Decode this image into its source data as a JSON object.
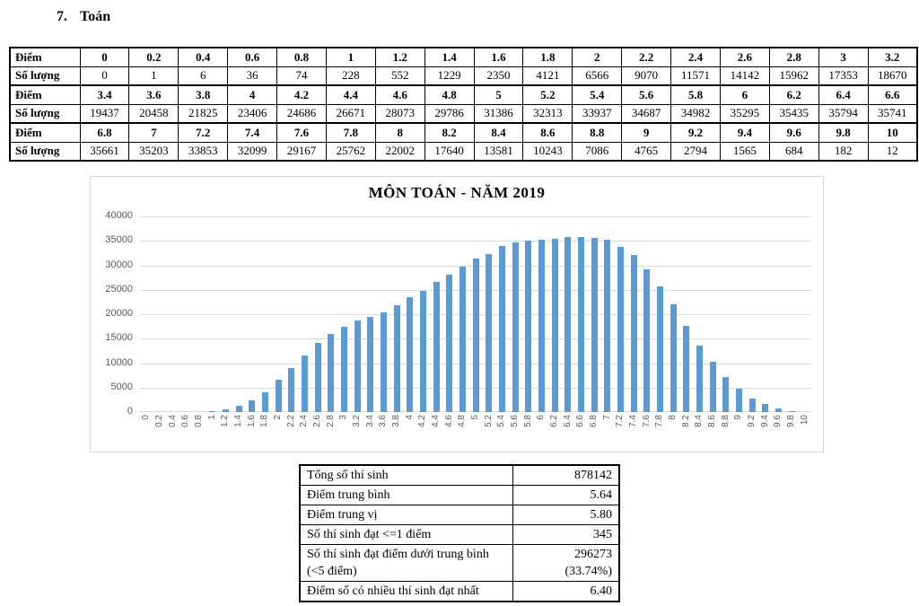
{
  "heading": {
    "number": "7.",
    "label": "Toán"
  },
  "score_table": {
    "rows": [
      {
        "label": "Điểm",
        "bold": true,
        "cells": [
          "0",
          "0.2",
          "0.4",
          "0.6",
          "0.8",
          "1",
          "1.2",
          "1.4",
          "1.6",
          "1.8",
          "2",
          "2.2",
          "2.4",
          "2.6",
          "2.8",
          "3",
          "3.2"
        ]
      },
      {
        "label": "Số lượng",
        "bold": false,
        "cells": [
          "0",
          "1",
          "6",
          "36",
          "74",
          "228",
          "552",
          "1229",
          "2350",
          "4121",
          "6566",
          "9070",
          "11571",
          "14142",
          "15962",
          "17353",
          "18670"
        ]
      },
      {
        "label": "Điểm",
        "bold": true,
        "cells": [
          "3.4",
          "3.6",
          "3.8",
          "4",
          "4.2",
          "4.4",
          "4.6",
          "4.8",
          "5",
          "5.2",
          "5.4",
          "5.6",
          "5.8",
          "6",
          "6.2",
          "6.4",
          "6.6"
        ]
      },
      {
        "label": "Số lượng",
        "bold": false,
        "cells": [
          "19437",
          "20458",
          "21825",
          "23406",
          "24686",
          "26671",
          "28073",
          "29786",
          "31386",
          "32313",
          "33937",
          "34687",
          "34982",
          "35295",
          "35435",
          "35794",
          "35741"
        ]
      },
      {
        "label": "Điểm",
        "bold": true,
        "cells": [
          "6.8",
          "7",
          "7.2",
          "7.4",
          "7.6",
          "7.8",
          "8",
          "8.2",
          "8.4",
          "8.6",
          "8.8",
          "9",
          "9.2",
          "9.4",
          "9.6",
          "9.8",
          "10"
        ]
      },
      {
        "label": "Số lượng",
        "bold": false,
        "cells": [
          "35661",
          "35203",
          "33853",
          "32099",
          "29167",
          "25762",
          "22002",
          "17640",
          "13581",
          "10243",
          "7086",
          "4765",
          "2794",
          "1565",
          "684",
          "182",
          "12"
        ]
      }
    ]
  },
  "chart_data": {
    "type": "bar",
    "title": "MÔN TOÁN - NĂM 2019",
    "categories": [
      "0",
      "0.2",
      "0.4",
      "0.6",
      "0.8",
      "1",
      "1.2",
      "1.4",
      "1.6",
      "1.8",
      "2",
      "2.2",
      "2.4",
      "2.6",
      "2.8",
      "3",
      "3.2",
      "3.4",
      "3.6",
      "3.8",
      "4",
      "4.2",
      "4.4",
      "4.6",
      "4.8",
      "5",
      "5.2",
      "5.4",
      "5.6",
      "5.8",
      "6",
      "6.2",
      "6.4",
      "6.6",
      "6.8",
      "7",
      "7.2",
      "7.4",
      "7.6",
      "7.8",
      "8",
      "8.2",
      "8.4",
      "8.6",
      "8.8",
      "9",
      "9.2",
      "9.4",
      "9.6",
      "9.8",
      "10"
    ],
    "values": [
      0,
      1,
      6,
      36,
      74,
      228,
      552,
      1229,
      2350,
      4121,
      6566,
      9070,
      11571,
      14142,
      15962,
      17353,
      18670,
      19437,
      20458,
      21825,
      23406,
      24686,
      26671,
      28073,
      29786,
      31386,
      32313,
      33937,
      34687,
      34982,
      35295,
      35435,
      35794,
      35741,
      35661,
      35203,
      33853,
      32099,
      29167,
      25762,
      22002,
      17640,
      13581,
      10243,
      7086,
      4765,
      2794,
      1565,
      684,
      182,
      12
    ],
    "xlabel": "",
    "ylabel": "",
    "ylim": [
      0,
      40000
    ],
    "yticks": [
      0,
      5000,
      10000,
      15000,
      20000,
      25000,
      30000,
      35000,
      40000
    ],
    "grid": true,
    "legend": "none",
    "bar_color": "#5b9bd5",
    "grid_color": "#d9d9d9",
    "axis_label_color": "#595959"
  },
  "summary_table": {
    "rows": [
      {
        "label": "Tổng số thí sinh",
        "value": "878142"
      },
      {
        "label": "Điểm trung bình",
        "value": "5.64"
      },
      {
        "label": "Điểm trung vị",
        "value": "5.80"
      },
      {
        "label": "Số thí sinh đạt <=1 điểm",
        "value": "345"
      },
      {
        "label": "Số thí sinh đạt điểm dưới trung bình\n(<5 điểm)",
        "value": "296273\n(33.74%)"
      },
      {
        "label": "Điểm số có nhiều thí sinh đạt nhất",
        "value": "6.40"
      }
    ]
  }
}
